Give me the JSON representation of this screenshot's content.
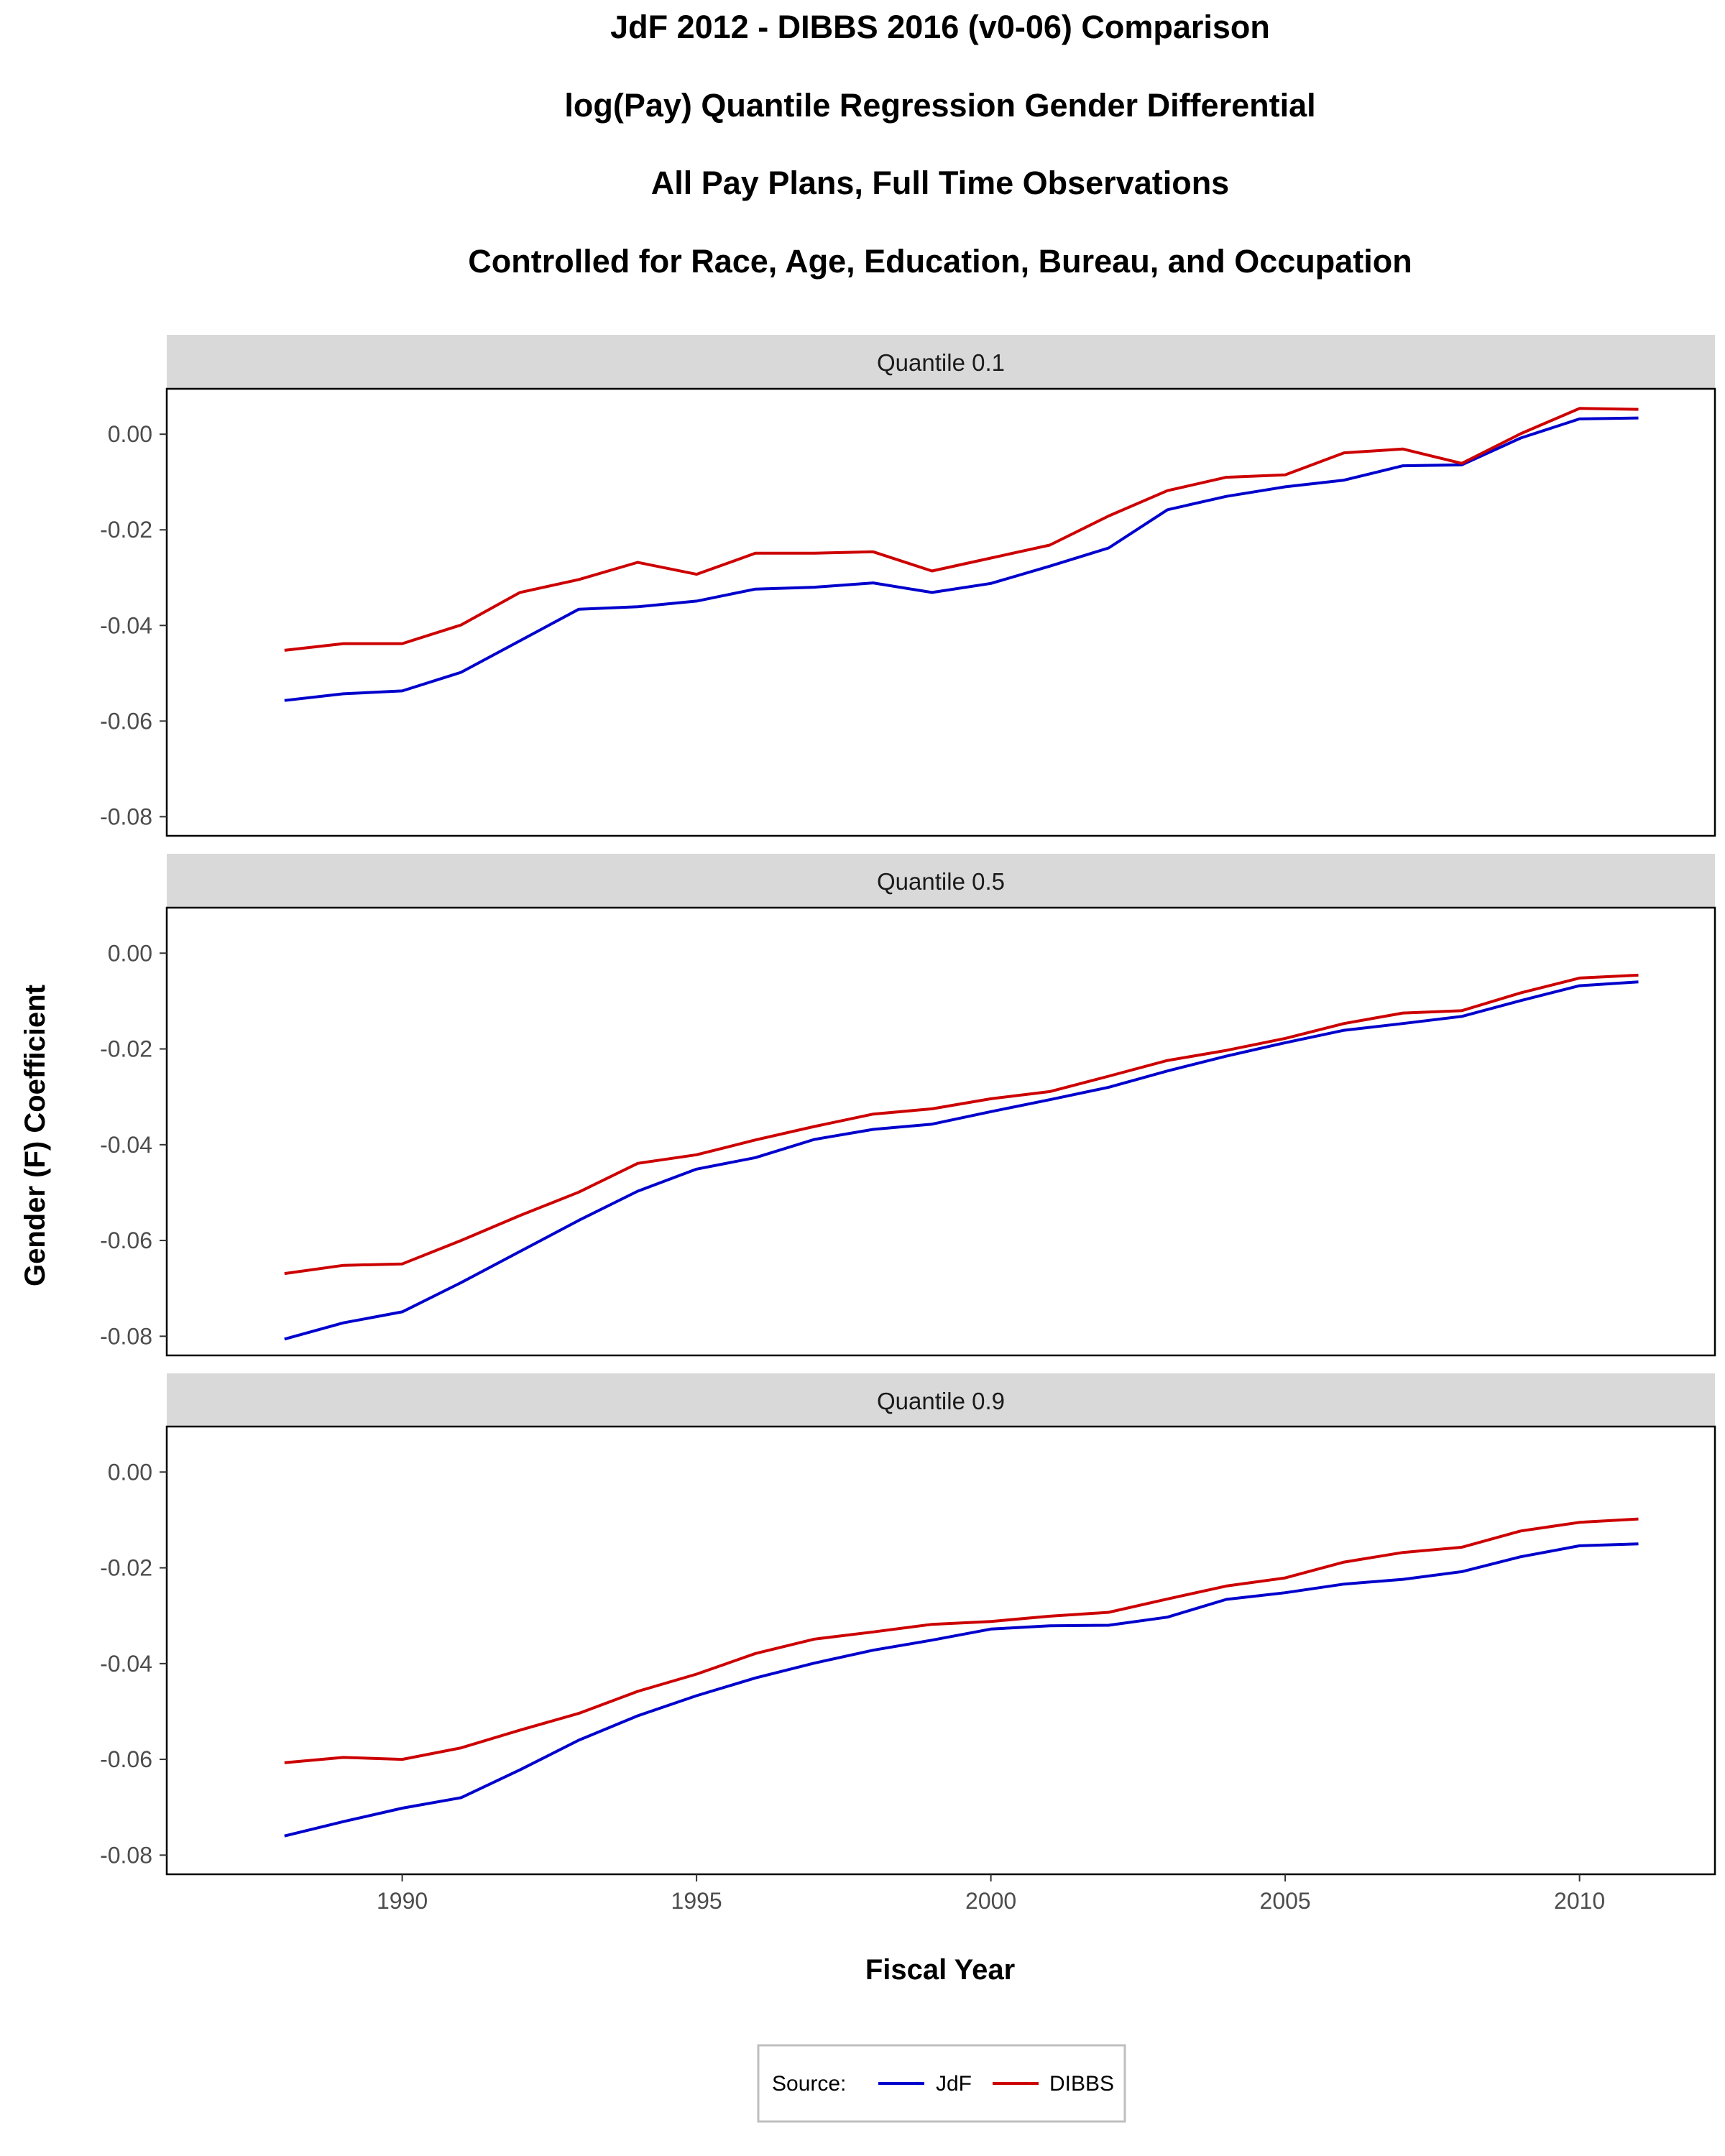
{
  "title_lines": [
    "JdF 2012 - DIBBS 2016 (v0-06) Comparison",
    "log(Pay) Quantile Regression Gender Differential",
    "All Pay Plans, Full Time Observations",
    "Controlled for Race, Age, Education, Bureau, and Occupation"
  ],
  "colors": {
    "JdF": "#0000cc",
    "DIBBS": "#cc0000",
    "strip": "#d9d9d9"
  },
  "chart_data": {
    "type": "line",
    "title": "JdF 2012 - DIBBS 2016 (v0-06) Comparison",
    "subtitle": "log(Pay) Quantile Regression Gender Differential / All Pay Plans, Full Time Observations / Controlled for Race, Age, Education, Bureau, and Occupation",
    "xlabel": "Fiscal Year",
    "ylabel": "Gender (F) Coefficient",
    "xlim": [
      1986,
      2012.3
    ],
    "ylim": [
      -0.084,
      0.0095
    ],
    "x_ticks": [
      1990,
      1995,
      2000,
      2005,
      2010
    ],
    "x_tick_labels": [
      "1990",
      "1995",
      "2000",
      "2005",
      "2010"
    ],
    "y_ticks": [
      0.0,
      -0.02,
      -0.04,
      -0.06,
      -0.08
    ],
    "y_tick_labels": [
      "0.00",
      "-0.02",
      "-0.04",
      "-0.06",
      "-0.08"
    ],
    "grid": false,
    "legend": {
      "title": "Source:",
      "position": "bottom",
      "entries": [
        "JdF",
        "DIBBS"
      ]
    },
    "x": [
      1988,
      1989,
      1990,
      1991,
      1992,
      1993,
      1994,
      1995,
      1996,
      1997,
      1998,
      1999,
      2000,
      2001,
      2002,
      2003,
      2004,
      2005,
      2006,
      2007,
      2008,
      2009,
      2010,
      2011
    ],
    "panels": [
      {
        "label": "Quantile 0.1",
        "series": [
          {
            "name": "JdF",
            "values": [
              -0.0557,
              -0.0543,
              -0.0537,
              -0.0498,
              -0.0432,
              -0.0366,
              -0.0361,
              -0.0349,
              -0.0324,
              -0.032,
              -0.0311,
              -0.0331,
              -0.0312,
              -0.0276,
              -0.0238,
              -0.0158,
              -0.013,
              -0.011,
              -0.0096,
              -0.0066,
              -0.0064,
              -0.0008,
              0.0032,
              0.0034
            ]
          },
          {
            "name": "DIBBS",
            "values": [
              -0.0452,
              -0.0438,
              -0.0438,
              -0.0399,
              -0.0331,
              -0.0304,
              -0.0268,
              -0.0293,
              -0.0249,
              -0.0249,
              -0.0246,
              -0.0286,
              -0.0259,
              -0.0232,
              -0.0171,
              -0.0118,
              -0.009,
              -0.0085,
              -0.0039,
              -0.0031,
              -0.0061,
              0.0001,
              0.0054,
              0.0052
            ]
          }
        ]
      },
      {
        "label": "Quantile 0.5",
        "series": [
          {
            "name": "JdF",
            "values": [
              -0.0806,
              -0.0772,
              -0.0749,
              -0.0688,
              -0.0623,
              -0.0558,
              -0.0497,
              -0.0451,
              -0.0427,
              -0.0389,
              -0.0368,
              -0.0357,
              -0.0331,
              -0.0306,
              -0.028,
              -0.0246,
              -0.0215,
              -0.0187,
              -0.0161,
              -0.0147,
              -0.0132,
              -0.0099,
              -0.0068,
              -0.006
            ]
          },
          {
            "name": "DIBBS",
            "values": [
              -0.0669,
              -0.0652,
              -0.0649,
              -0.06,
              -0.0548,
              -0.0499,
              -0.0439,
              -0.0421,
              -0.039,
              -0.0362,
              -0.0336,
              -0.0325,
              -0.0304,
              -0.0289,
              -0.0257,
              -0.0224,
              -0.0203,
              -0.0178,
              -0.0147,
              -0.0125,
              -0.012,
              -0.0083,
              -0.0052,
              -0.0046
            ]
          }
        ]
      },
      {
        "label": "Quantile 0.9",
        "series": [
          {
            "name": "JdF",
            "values": [
              -0.076,
              -0.073,
              -0.0702,
              -0.068,
              -0.0622,
              -0.056,
              -0.0509,
              -0.0467,
              -0.043,
              -0.0399,
              -0.0372,
              -0.0351,
              -0.0328,
              -0.0321,
              -0.032,
              -0.0303,
              -0.0266,
              -0.0252,
              -0.0234,
              -0.0224,
              -0.0208,
              -0.0177,
              -0.0154,
              -0.015
            ]
          },
          {
            "name": "DIBBS",
            "values": [
              -0.0607,
              -0.0596,
              -0.06,
              -0.0576,
              -0.0539,
              -0.0504,
              -0.0458,
              -0.0422,
              -0.0379,
              -0.0349,
              -0.0334,
              -0.0318,
              -0.0312,
              -0.0301,
              -0.0293,
              -0.0265,
              -0.0238,
              -0.0221,
              -0.0188,
              -0.0168,
              -0.0157,
              -0.0123,
              -0.0105,
              -0.0098
            ]
          }
        ]
      }
    ]
  }
}
